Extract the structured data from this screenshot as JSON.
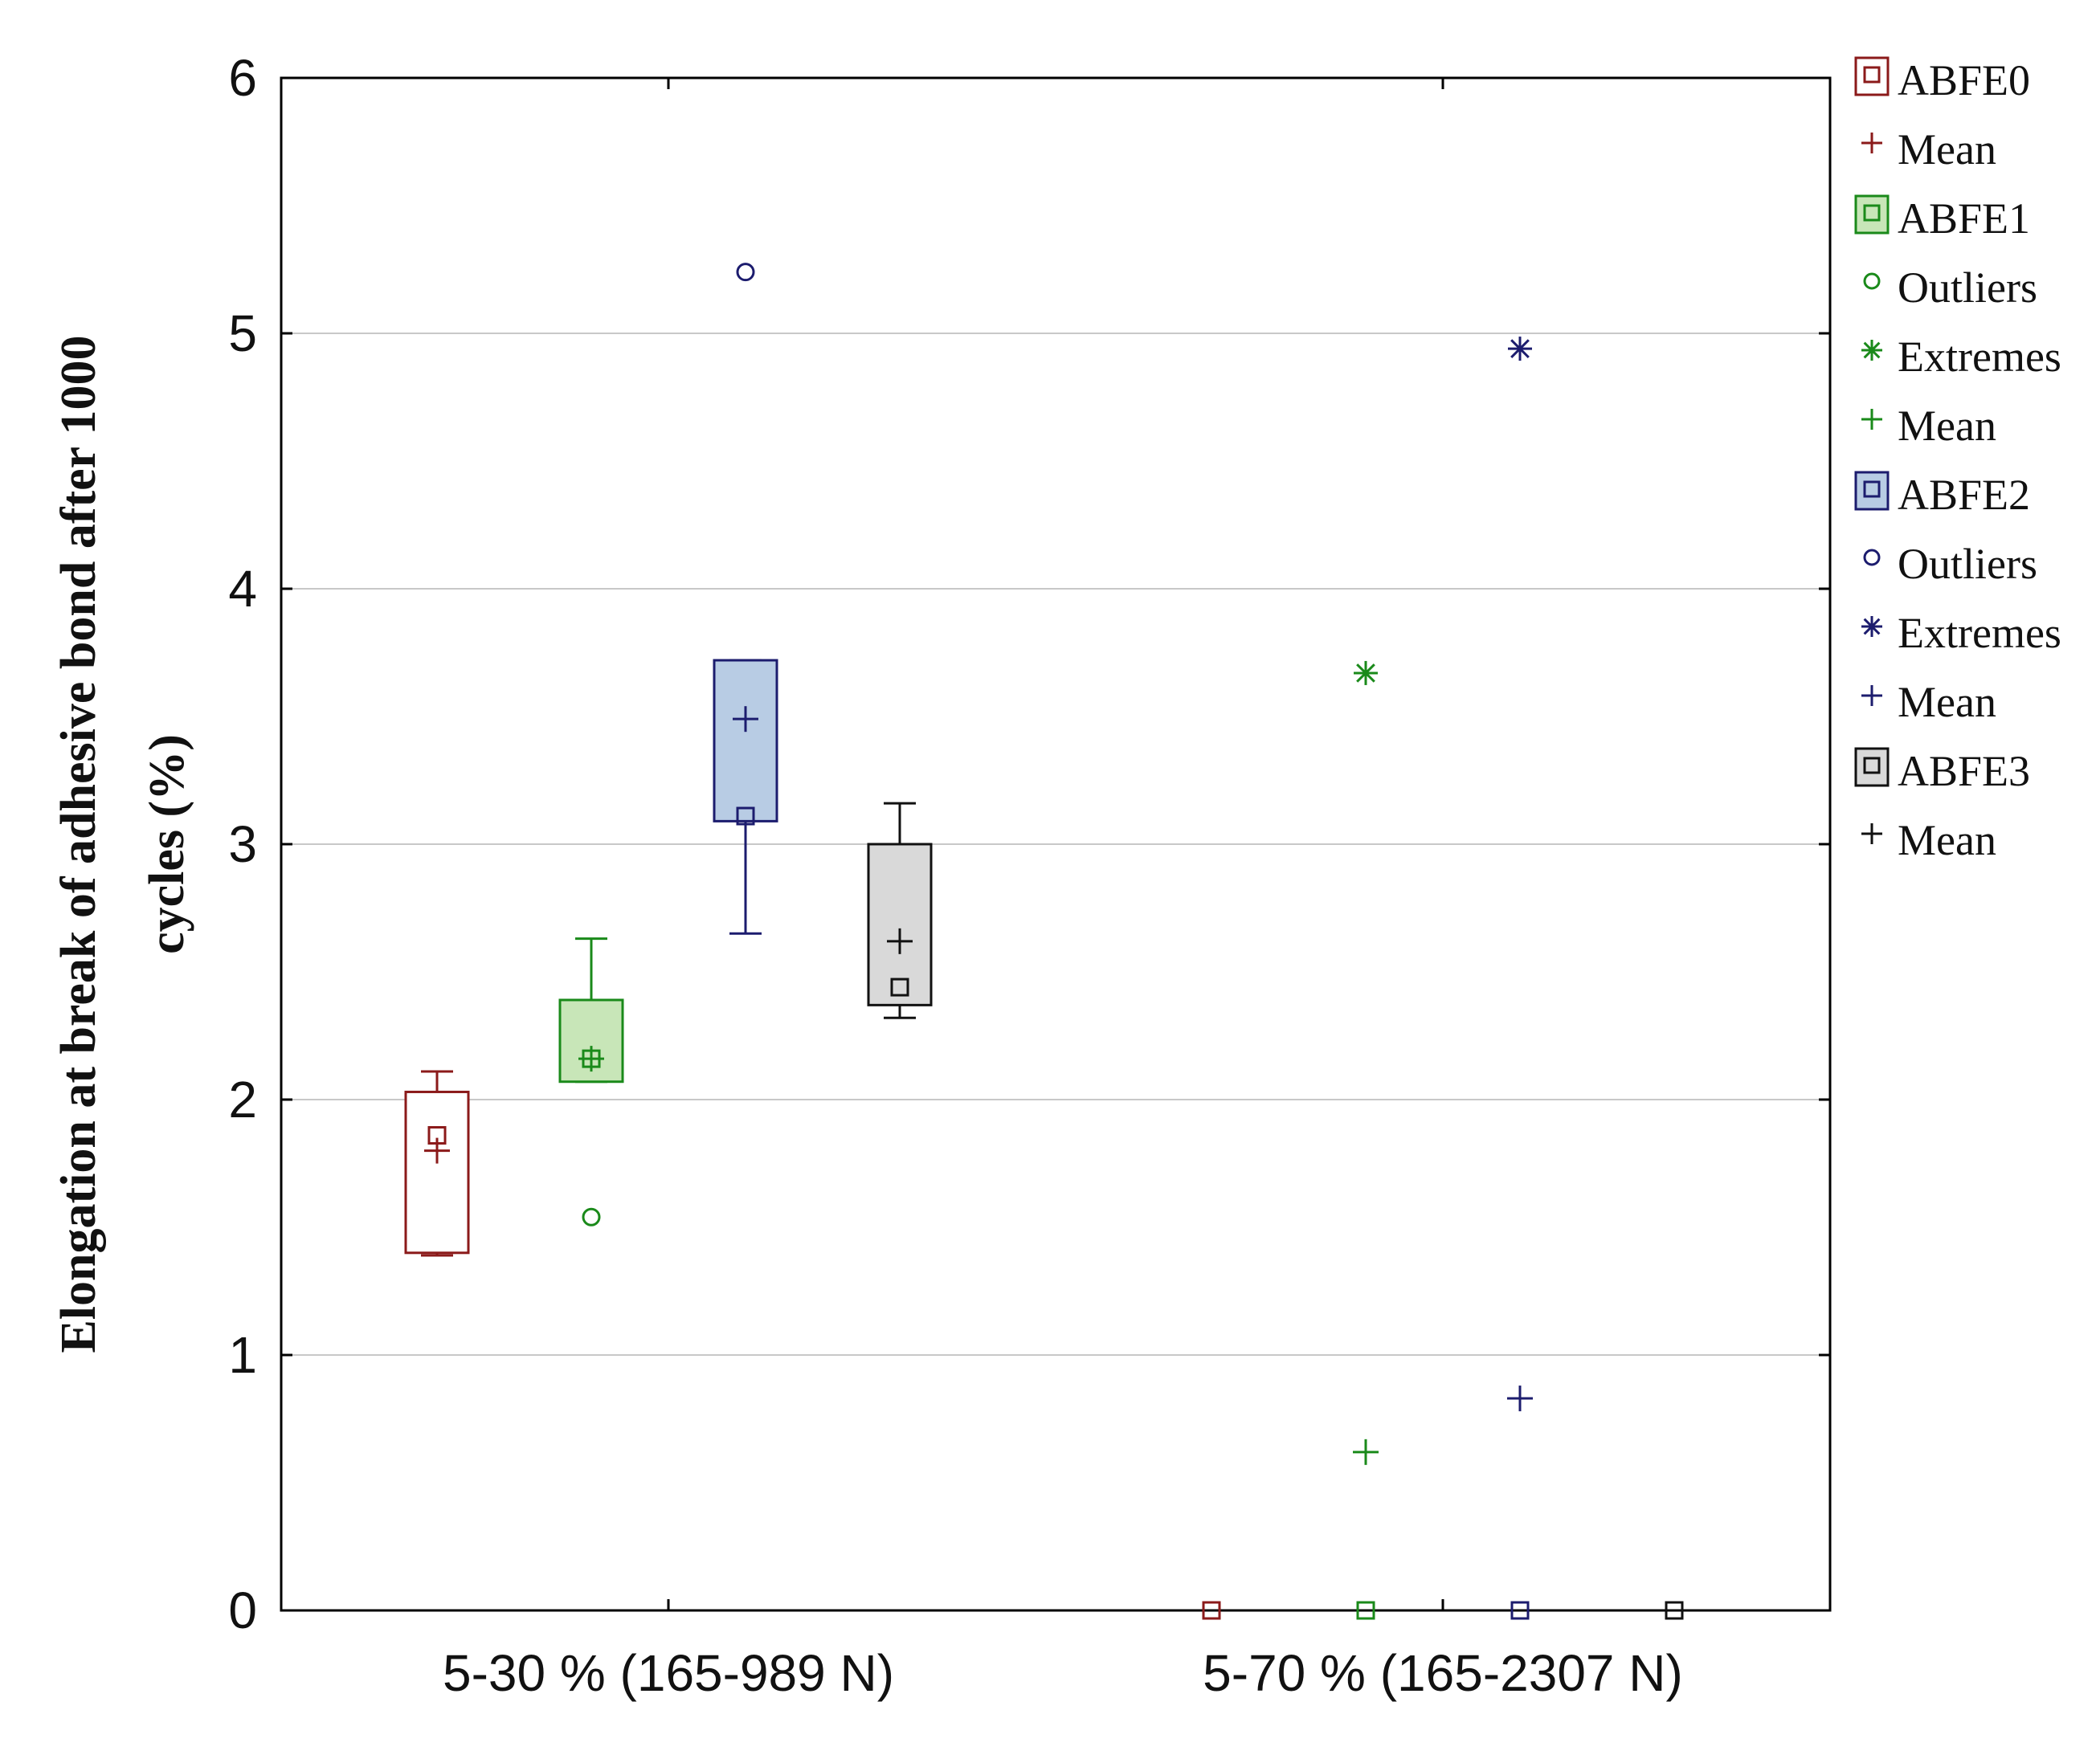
{
  "chart_data": {
    "type": "box",
    "title": "",
    "xlabel": "",
    "ylabel_lines": [
      "Elongation at break of adhesive bond after 1000",
      "cycles (%)"
    ],
    "ylim": [
      0,
      6
    ],
    "yticks": [
      "0",
      "1",
      "2",
      "3",
      "4",
      "5",
      "6"
    ],
    "grid": true,
    "categories": [
      "5-30 % (165-989 N)",
      "5-70 % (165-2307 N)"
    ],
    "series": [
      {
        "name": "ABFE0",
        "color": "#8b1a1a",
        "fill": "#ffffff",
        "boxes": [
          {
            "median": 1.86,
            "q1": 1.4,
            "q3": 2.03,
            "min": 1.39,
            "max": 2.11,
            "mean": 1.8,
            "outliers": [],
            "extremes": []
          },
          {
            "median": 0.0,
            "q1": 0.0,
            "q3": 0.0,
            "min": 0.0,
            "max": 0.0,
            "mean": 0.0,
            "outliers": [],
            "extremes": []
          }
        ]
      },
      {
        "name": "ABFE1",
        "color": "#1a8a1a",
        "fill": "#c8e6b8",
        "boxes": [
          {
            "median": 2.16,
            "q1": 2.07,
            "q3": 2.39,
            "min": 2.07,
            "max": 2.63,
            "mean": 2.16,
            "outliers": [
              1.54
            ],
            "extremes": []
          },
          {
            "median": 0.0,
            "q1": 0.0,
            "q3": 0.0,
            "min": 0.0,
            "max": 0.0,
            "mean": 0.62,
            "outliers": [],
            "extremes": [
              3.67
            ]
          }
        ]
      },
      {
        "name": "ABFE2",
        "color": "#1c1c6e",
        "fill": "#b8cce4",
        "boxes": [
          {
            "median": 3.11,
            "q1": 3.09,
            "q3": 3.72,
            "min": 2.65,
            "max": 3.72,
            "mean": 3.49,
            "outliers": [
              5.24
            ],
            "extremes": []
          },
          {
            "median": 0.0,
            "q1": 0.0,
            "q3": 0.0,
            "min": 0.0,
            "max": 0.0,
            "mean": 0.83,
            "outliers": [],
            "extremes": [
              4.94
            ]
          }
        ]
      },
      {
        "name": "ABFE3",
        "color": "#111111",
        "fill": "#d9d9d9",
        "boxes": [
          {
            "median": 2.44,
            "q1": 2.37,
            "q3": 3.0,
            "min": 2.32,
            "max": 3.16,
            "mean": 2.62,
            "outliers": [],
            "extremes": []
          },
          {
            "median": 0.0,
            "q1": 0.0,
            "q3": 0.0,
            "min": 0.0,
            "max": 0.0,
            "mean": 0.0,
            "outliers": [],
            "extremes": []
          }
        ]
      }
    ],
    "legend": [
      {
        "label": "ABFE0",
        "symbol": "box",
        "series": 0
      },
      {
        "label": "Mean",
        "symbol": "plus",
        "series": 0
      },
      {
        "label": "ABFE1",
        "symbol": "box",
        "series": 1
      },
      {
        "label": "Outliers",
        "symbol": "circle",
        "series": 1
      },
      {
        "label": "Extremes",
        "symbol": "star",
        "series": 1
      },
      {
        "label": "Mean",
        "symbol": "plus",
        "series": 1
      },
      {
        "label": "ABFE2",
        "symbol": "box",
        "series": 2
      },
      {
        "label": "Outliers",
        "symbol": "circle",
        "series": 2
      },
      {
        "label": "Extremes",
        "symbol": "star",
        "series": 2
      },
      {
        "label": "Mean",
        "symbol": "plus",
        "series": 2
      },
      {
        "label": "ABFE3",
        "symbol": "box",
        "series": 3
      },
      {
        "label": "Mean",
        "symbol": "plus",
        "series": 3
      }
    ],
    "legend_position": "right"
  }
}
